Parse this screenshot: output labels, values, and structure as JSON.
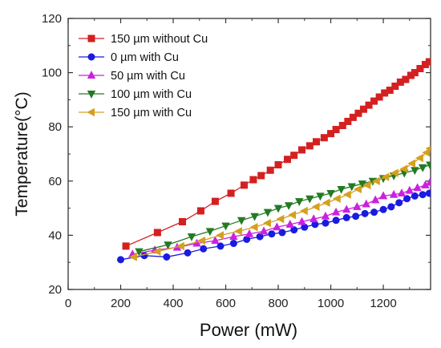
{
  "chart_data": {
    "type": "line",
    "title": "",
    "xlabel": "Power (mW)",
    "ylabel": "Temperature(°C)",
    "xlim": [
      0,
      1380
    ],
    "ylim": [
      20,
      120
    ],
    "xticks": [
      0,
      200,
      400,
      600,
      800,
      1000,
      1200
    ],
    "yticks": [
      20,
      40,
      60,
      80,
      100,
      120
    ],
    "grid": false,
    "legend_position": "top-left",
    "series": [
      {
        "name": "150 µm without Cu",
        "color": "#d42020",
        "marker": "square",
        "x": [
          220,
          340,
          435,
          505,
          560,
          620,
          670,
          705,
          735,
          770,
          800,
          835,
          860,
          890,
          920,
          945,
          975,
          1000,
          1020,
          1045,
          1065,
          1085,
          1105,
          1125,
          1145,
          1165,
          1185,
          1205,
          1225,
          1245,
          1265,
          1285,
          1305,
          1320,
          1340,
          1360,
          1375
        ],
        "y": [
          36,
          41,
          45,
          49,
          52.5,
          55.5,
          58.5,
          60.5,
          62,
          64,
          66,
          68,
          69.5,
          71.5,
          73,
          74.5,
          76,
          77.5,
          79,
          80.5,
          82,
          83.5,
          85,
          86.5,
          88,
          89.5,
          91,
          92.5,
          93.5,
          95,
          96.5,
          97.5,
          99,
          100,
          101.5,
          103,
          104
        ]
      },
      {
        "name": "0 µm with Cu",
        "color": "#1a1ae0",
        "marker": "circle",
        "x": [
          200,
          290,
          375,
          455,
          515,
          580,
          630,
          680,
          730,
          775,
          815,
          860,
          900,
          940,
          980,
          1020,
          1060,
          1095,
          1130,
          1165,
          1200,
          1230,
          1260,
          1290,
          1320,
          1350,
          1375
        ],
        "y": [
          31,
          32.5,
          32,
          33.5,
          35,
          36,
          37,
          38.5,
          39.5,
          40.5,
          41,
          42,
          43,
          44,
          44.5,
          45.5,
          46.5,
          47,
          48,
          48.5,
          49.5,
          50.5,
          52,
          53.5,
          54.5,
          55,
          55.5
        ]
      },
      {
        "name": "50 µm with Cu",
        "color": "#cc20e0",
        "marker": "triangle-up",
        "x": [
          245,
          330,
          415,
          490,
          560,
          630,
          690,
          745,
          795,
          845,
          890,
          935,
          980,
          1020,
          1060,
          1100,
          1135,
          1170,
          1200,
          1240,
          1270,
          1300,
          1330,
          1360,
          1378
        ],
        "y": [
          33,
          34.5,
          35.5,
          37,
          38,
          39.5,
          40.5,
          41.5,
          43,
          44,
          45,
          46,
          47,
          48.5,
          49.5,
          50.5,
          51.5,
          53,
          54.5,
          55,
          55.5,
          56.5,
          57.5,
          58.5,
          59.5
        ]
      },
      {
        "name": "100 µm with Cu",
        "color": "#237a23",
        "marker": "triangle-down",
        "x": [
          270,
          380,
          470,
          540,
          600,
          660,
          710,
          760,
          800,
          840,
          880,
          920,
          960,
          1000,
          1040,
          1080,
          1120,
          1160,
          1200,
          1240,
          1280,
          1320,
          1350,
          1378
        ],
        "y": [
          34,
          36.5,
          39.5,
          41.5,
          43.5,
          45.5,
          47,
          48.5,
          50,
          51,
          52.5,
          53.5,
          54.5,
          55.5,
          57,
          58,
          59,
          60,
          61,
          62,
          63,
          64,
          65,
          66
        ]
      },
      {
        "name": "150 µm with Cu",
        "color": "#d4a020",
        "marker": "triangle-left",
        "x": [
          250,
          340,
          430,
          510,
          580,
          650,
          710,
          760,
          810,
          855,
          900,
          945,
          985,
          1025,
          1065,
          1105,
          1140,
          1175,
          1210,
          1245,
          1280,
          1310,
          1340,
          1365,
          1378
        ],
        "y": [
          32,
          34,
          36,
          38,
          40,
          41.5,
          43,
          44.5,
          46,
          47.5,
          49,
          50.5,
          52,
          53.5,
          55,
          57,
          58.5,
          60,
          61.5,
          63,
          64.5,
          66.5,
          68.5,
          70.5,
          72
        ]
      }
    ]
  }
}
